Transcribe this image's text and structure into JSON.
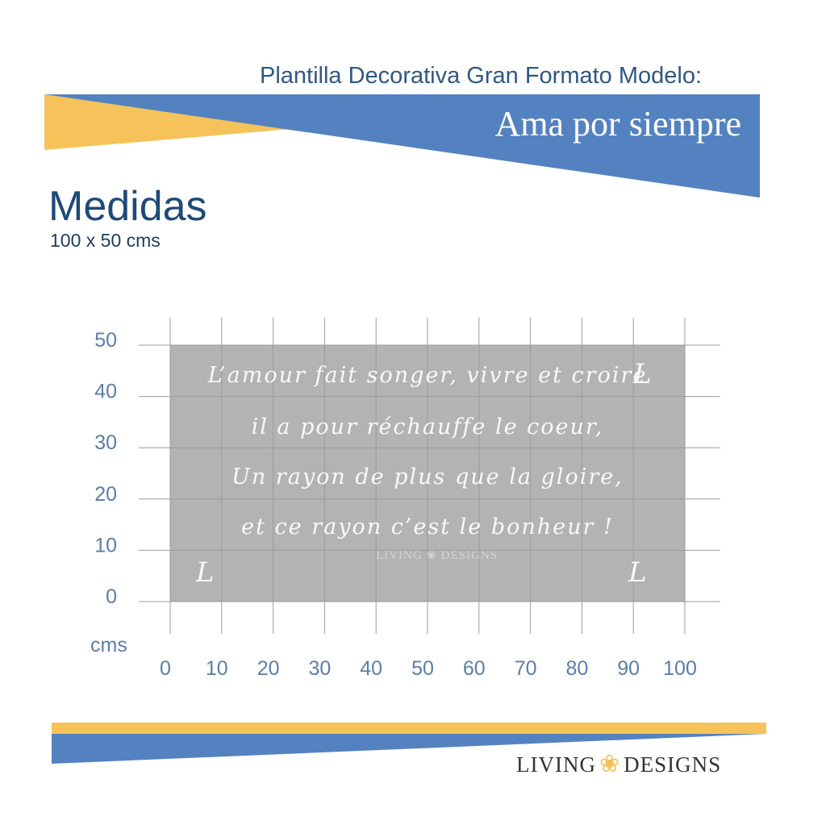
{
  "header": {
    "subtitle": "Plantilla Decorativa Gran Formato Modelo:",
    "title": "Ama por siempre"
  },
  "medidas": {
    "heading": "Medidas",
    "size": "100 x 50 cms"
  },
  "stencil": {
    "lines": [
      "L’amour fait songer, vivre et croire",
      "il a pour réchauffe le coeur,",
      "Un rayon de plus que la gloire,",
      "et ce rayon c’est le bonheur !"
    ],
    "corner_glyph": "L",
    "watermark_left": "LIVING",
    "watermark_right": "DESIGNS",
    "width_cm": 100,
    "height_cm": 50
  },
  "chart_data": {
    "type": "table",
    "x_unit_label": "cms",
    "x_ticks": [
      0,
      10,
      20,
      30,
      40,
      50,
      60,
      70,
      80,
      90,
      100
    ],
    "y_ticks": [
      0,
      10,
      20,
      30,
      40,
      50
    ],
    "xlim": [
      0,
      100
    ],
    "ylim": [
      0,
      50
    ]
  },
  "footer": {
    "brand_left": "LIVING",
    "brand_right": "DESIGNS",
    "lotus_icon": "lotus-icon"
  },
  "colors": {
    "blue": "#5482c0",
    "yellow": "#f5c35a",
    "stencil_gray": "#b3b3b3",
    "grid": "#9b9b9b",
    "axis_text": "#5b7ea8"
  }
}
